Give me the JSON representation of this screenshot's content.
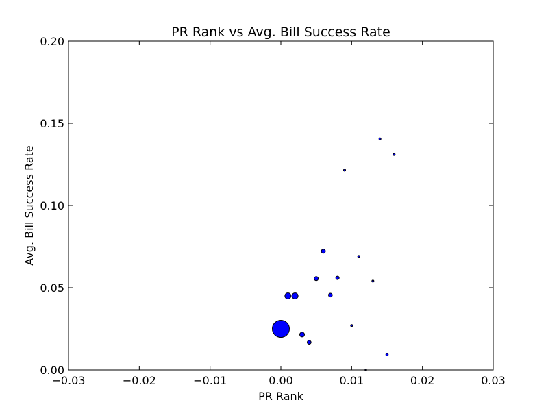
{
  "chart_data": {
    "type": "scatter",
    "title": "PR Rank vs Avg. Bill Success Rate",
    "xlabel": "PR Rank",
    "ylabel": "Avg. Bill Success Rate",
    "xlim": [
      -0.03,
      0.03
    ],
    "ylim": [
      0.0,
      0.2
    ],
    "xticks": [
      -0.03,
      -0.02,
      -0.01,
      0.0,
      0.01,
      0.02,
      0.03
    ],
    "xtick_labels": [
      "−0.03",
      "−0.02",
      "−0.01",
      "0.00",
      "0.01",
      "0.02",
      "0.03"
    ],
    "yticks": [
      0.0,
      0.05,
      0.1,
      0.15,
      0.2
    ],
    "ytick_labels": [
      "0.00",
      "0.05",
      "0.10",
      "0.15",
      "0.20"
    ],
    "grid": false,
    "marker_color": "#0000ff",
    "marker_edge_color": "#000000",
    "points": [
      {
        "x": 0.0,
        "y": 0.025,
        "size": 12.5
      },
      {
        "x": 0.001,
        "y": 0.045,
        "size": 4.5
      },
      {
        "x": 0.002,
        "y": 0.045,
        "size": 4.5
      },
      {
        "x": 0.003,
        "y": 0.0215,
        "size": 3.5
      },
      {
        "x": 0.004,
        "y": 0.0168,
        "size": 2.8
      },
      {
        "x": 0.005,
        "y": 0.0555,
        "size": 3.0
      },
      {
        "x": 0.006,
        "y": 0.0722,
        "size": 3.0
      },
      {
        "x": 0.007,
        "y": 0.0455,
        "size": 2.8
      },
      {
        "x": 0.008,
        "y": 0.056,
        "size": 2.5
      },
      {
        "x": 0.009,
        "y": 0.1215,
        "size": 1.5
      },
      {
        "x": 0.01,
        "y": 0.027,
        "size": 1.5
      },
      {
        "x": 0.011,
        "y": 0.069,
        "size": 1.5
      },
      {
        "x": 0.012,
        "y": 0.0,
        "size": 1.2
      },
      {
        "x": 0.013,
        "y": 0.054,
        "size": 1.5
      },
      {
        "x": 0.014,
        "y": 0.1405,
        "size": 1.5
      },
      {
        "x": 0.015,
        "y": 0.0093,
        "size": 1.8
      },
      {
        "x": 0.016,
        "y": 0.131,
        "size": 1.5
      }
    ]
  }
}
